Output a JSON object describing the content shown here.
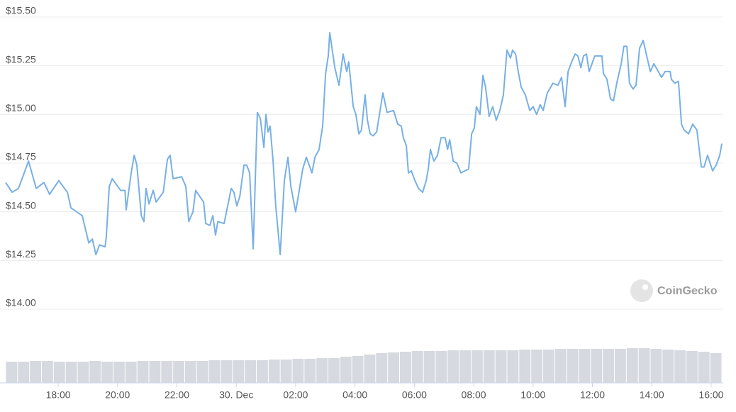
{
  "chart_data": {
    "type": "line",
    "x": [
      -7.77,
      -7.55,
      -7.34,
      -7.0,
      -6.74,
      -6.48,
      -6.29,
      -5.98,
      -5.69,
      -5.57,
      -5.19,
      -4.97,
      -4.85,
      -4.73,
      -4.61,
      -4.42,
      -4.38,
      -4.28,
      -4.18,
      -3.9,
      -3.75,
      -3.71,
      -3.54,
      -3.44,
      -3.35,
      -3.2,
      -3.11,
      -3.04,
      -2.94,
      -2.8,
      -2.7,
      -2.46,
      -2.32,
      -2.23,
      -2.13,
      -1.84,
      -1.7,
      -1.6,
      -1.46,
      -1.37,
      -1.1,
      -1.03,
      -0.89,
      -0.79,
      -0.7,
      -0.62,
      -0.41,
      -0.17,
      -0.08,
      0.02,
      0.12,
      0.26,
      0.35,
      0.45,
      0.57,
      0.71,
      0.81,
      0.93,
      1.0,
      1.07,
      1.14,
      1.24,
      1.33,
      1.48,
      1.62,
      1.74,
      1.84,
      2.0,
      2.1,
      2.24,
      2.36,
      2.55,
      2.65,
      2.79,
      2.91,
      3.01,
      3.1,
      3.15,
      3.32,
      3.46,
      3.6,
      3.72,
      3.79,
      3.94,
      4.03,
      4.13,
      4.22,
      4.34,
      4.42,
      4.51,
      4.61,
      4.73,
      4.94,
      5.08,
      5.3,
      5.44,
      5.56,
      5.63,
      5.73,
      5.8,
      5.9,
      6.02,
      6.14,
      6.28,
      6.4,
      6.47,
      6.54,
      6.66,
      6.78,
      6.9,
      7.04,
      7.12,
      7.19,
      7.31,
      7.43,
      7.57,
      7.83,
      7.93,
      8.02,
      8.09,
      8.21,
      8.31,
      8.4,
      8.52,
      8.64,
      8.76,
      8.88,
      9.0,
      9.12,
      9.24,
      9.31,
      9.41,
      9.5,
      9.6,
      9.74,
      9.89,
      10.0,
      10.12,
      10.24,
      10.34,
      10.48,
      10.67,
      10.84,
      10.96,
      11.08,
      11.18,
      11.3,
      11.42,
      11.51,
      11.61,
      11.7,
      11.8,
      11.89,
      12.08,
      12.32,
      12.37,
      12.49,
      12.61,
      12.71,
      12.82,
      12.97,
      13.06,
      13.16,
      13.25,
      13.37,
      13.47,
      13.59,
      13.71,
      13.83,
      13.95,
      14.07,
      14.33,
      14.45,
      14.62,
      14.66,
      14.78,
      14.9,
      15.0,
      15.09,
      15.24,
      15.38,
      15.52,
      15.67,
      15.76,
      15.88,
      16.05,
      16.17,
      16.29,
      16.36
    ],
    "series": [
      {
        "color": "#77b0e6",
        "values": [
          14.65,
          14.6,
          14.62,
          14.76,
          14.62,
          14.65,
          14.59,
          14.66,
          14.6,
          14.52,
          14.48,
          14.34,
          14.36,
          14.28,
          14.33,
          14.32,
          14.37,
          14.63,
          14.67,
          14.61,
          14.61,
          14.51,
          14.7,
          14.79,
          14.74,
          14.48,
          14.45,
          14.62,
          14.54,
          14.61,
          14.55,
          14.6,
          14.77,
          14.79,
          14.67,
          14.68,
          14.63,
          14.45,
          14.5,
          14.61,
          14.55,
          14.44,
          14.43,
          14.48,
          14.38,
          14.45,
          14.44,
          14.62,
          14.6,
          14.53,
          14.58,
          14.74,
          14.74,
          14.7,
          14.31,
          15.01,
          14.98,
          14.83,
          15.0,
          14.91,
          14.94,
          14.76,
          14.53,
          14.28,
          14.66,
          14.78,
          14.63,
          14.5,
          14.59,
          14.72,
          14.78,
          14.7,
          14.78,
          14.82,
          14.94,
          15.21,
          15.3,
          15.42,
          15.24,
          15.15,
          15.31,
          15.22,
          15.27,
          15.04,
          15.0,
          14.9,
          14.92,
          15.1,
          14.97,
          14.9,
          14.89,
          14.91,
          15.11,
          15.01,
          15.02,
          14.95,
          14.94,
          14.88,
          14.84,
          14.7,
          14.71,
          14.66,
          14.62,
          14.6,
          14.66,
          14.72,
          14.82,
          14.76,
          14.79,
          14.88,
          14.88,
          14.82,
          14.87,
          14.76,
          14.75,
          14.7,
          14.72,
          14.9,
          14.93,
          15.04,
          15.0,
          15.2,
          15.14,
          14.99,
          15.04,
          14.97,
          15.02,
          15.1,
          15.33,
          15.29,
          15.33,
          15.31,
          15.22,
          15.14,
          15.1,
          15.02,
          15.04,
          15.0,
          15.05,
          15.02,
          15.11,
          15.16,
          15.15,
          15.19,
          15.04,
          15.22,
          15.27,
          15.31,
          15.3,
          15.24,
          15.3,
          15.31,
          15.22,
          15.3,
          15.3,
          15.21,
          15.18,
          15.08,
          15.07,
          15.16,
          15.26,
          15.35,
          15.35,
          15.16,
          15.13,
          15.15,
          15.34,
          15.38,
          15.3,
          15.22,
          15.26,
          15.19,
          15.22,
          15.22,
          15.18,
          15.16,
          15.17,
          14.95,
          14.92,
          14.9,
          14.95,
          14.92,
          14.73,
          14.73,
          14.79,
          14.71,
          14.74,
          14.79,
          14.85
        ]
      }
    ],
    "xlim": [
      -7.77,
      16.36
    ],
    "xticks": [
      {
        "value": -6,
        "label": "18:00"
      },
      {
        "value": -4,
        "label": "20:00"
      },
      {
        "value": -2,
        "label": "22:00"
      },
      {
        "value": 0,
        "label": "30. Dec"
      },
      {
        "value": 2,
        "label": "02:00"
      },
      {
        "value": 4,
        "label": "04:00"
      },
      {
        "value": 6,
        "label": "06:00"
      },
      {
        "value": 8,
        "label": "08:00"
      },
      {
        "value": 10,
        "label": "10:00"
      },
      {
        "value": 12,
        "label": "12:00"
      },
      {
        "value": 14,
        "label": "14:00"
      },
      {
        "value": 16,
        "label": "16:00"
      }
    ],
    "ylim": [
      14.0,
      15.5
    ],
    "yticks": [
      {
        "value": 14.0,
        "label": "$14.00"
      },
      {
        "value": 14.25,
        "label": "$14.25"
      },
      {
        "value": 14.5,
        "label": "$14.50"
      },
      {
        "value": 14.75,
        "label": "$14.75"
      },
      {
        "value": 15.0,
        "label": "$15.00"
      },
      {
        "value": 15.25,
        "label": "$15.25"
      },
      {
        "value": 15.5,
        "label": "$15.50"
      }
    ],
    "grid": true,
    "volume": {
      "color": "#d6d9df",
      "ylim": [
        0,
        60
      ],
      "values": [
        30,
        30,
        31,
        31,
        30,
        30,
        30,
        31,
        30,
        30,
        30,
        31,
        31,
        31,
        31,
        31,
        31,
        32,
        32,
        32,
        32,
        32,
        33,
        33,
        34,
        34,
        35,
        35,
        37,
        38,
        40,
        42,
        43,
        44,
        45,
        45,
        45,
        46,
        46,
        46,
        46,
        46,
        46,
        47,
        47,
        47,
        48,
        48,
        48,
        48,
        48,
        48,
        49,
        49,
        48,
        47,
        46,
        45,
        44,
        42
      ]
    },
    "watermark": "CoinGecko"
  }
}
